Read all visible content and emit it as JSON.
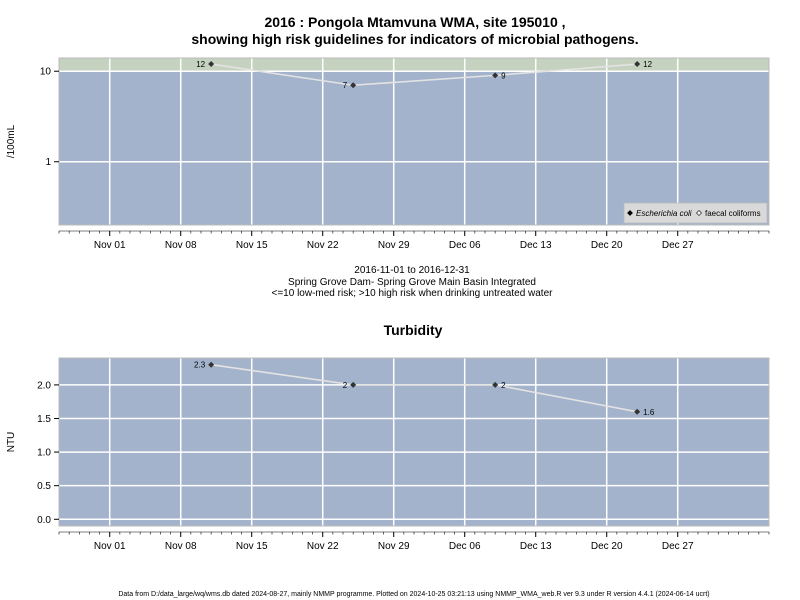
{
  "page": {
    "title_line1": "2016 : Pongola Mtamvuna WMA, site 195010 ,",
    "title_line2": "showing high risk guidelines for indicators of microbial pathogens.",
    "range_text": "2016-11-01 to 2016-12-31",
    "site_text": "Spring Grove Dam- Spring Grove Main Basin Integrated",
    "risk_text": "<=10 low-med risk; >10 high risk when drinking untreated water",
    "turbidity_title": "Turbidity",
    "footer": "Data from D:/data_large/wq/wms.db dated 2024-08-27, mainly NMMP programme. Plotted on 2024-10-25 03:21:13 using NMMP_WMA_web.R ver 9.3 under R version 4.4.1 (2024-06-14 ucrt)"
  },
  "chart_data": [
    {
      "type": "line",
      "ylabel": "/100mL",
      "yscale": "log",
      "ylim": [
        0.2,
        14
      ],
      "y_ticks": [
        1,
        10
      ],
      "y_tick_labels": [
        "1",
        "10"
      ],
      "xlim": [
        "2016-10-27",
        "2017-01-05"
      ],
      "x_ticks": [
        "2016-11-01",
        "2016-11-08",
        "2016-11-15",
        "2016-11-22",
        "2016-11-29",
        "2016-12-06",
        "2016-12-13",
        "2016-12-20",
        "2016-12-27"
      ],
      "x_tick_labels": [
        "Nov 01",
        "Nov 08",
        "Nov 15",
        "Nov 22",
        "Nov 29",
        "Dec 06",
        "Dec 13",
        "Dec 20",
        "Dec 27"
      ],
      "threshold": 10,
      "grid": true,
      "legend_position": "bottom-right",
      "series": [
        {
          "name": "Escherichia coli",
          "marker": "filled-diamond",
          "x": [
            "2016-11-11",
            "2016-11-25",
            "2016-12-09",
            "2016-12-23"
          ],
          "y": [
            12,
            7,
            9,
            12
          ],
          "labels": [
            "12",
            "7",
            "9",
            "12"
          ]
        },
        {
          "name": "faecal coliforms",
          "marker": "open-diamond",
          "x": [],
          "y": []
        }
      ],
      "colors": {
        "panel": "#a3b3cb",
        "high_risk_band": "#c5d2bf",
        "grid": "#ffffff",
        "line": "#e3e3e3",
        "marker": "#333333"
      }
    },
    {
      "type": "line",
      "title": "Turbidity",
      "ylabel": "NTU",
      "ylim": [
        -0.1,
        2.4
      ],
      "y_ticks": [
        0,
        0.5,
        1,
        1.5,
        2
      ],
      "y_tick_labels": [
        "0.0",
        "0.5",
        "1.0",
        "1.5",
        "2.0"
      ],
      "xlim": [
        "2016-10-27",
        "2017-01-05"
      ],
      "x_ticks": [
        "2016-11-01",
        "2016-11-08",
        "2016-11-15",
        "2016-11-22",
        "2016-11-29",
        "2016-12-06",
        "2016-12-13",
        "2016-12-20",
        "2016-12-27"
      ],
      "x_tick_labels": [
        "Nov 01",
        "Nov 08",
        "Nov 15",
        "Nov 22",
        "Nov 29",
        "Dec 06",
        "Dec 13",
        "Dec 20",
        "Dec 27"
      ],
      "grid": true,
      "series": [
        {
          "marker": "filled-diamond",
          "x": [
            "2016-11-11",
            "2016-11-25",
            "2016-12-09",
            "2016-12-23"
          ],
          "y": [
            2.3,
            2,
            2,
            1.6
          ],
          "labels": [
            "2.3",
            "2",
            "2",
            "1.6"
          ]
        }
      ],
      "colors": {
        "panel": "#a3b3cb",
        "grid": "#ffffff",
        "line": "#e3e3e3",
        "marker": "#333333"
      }
    }
  ]
}
